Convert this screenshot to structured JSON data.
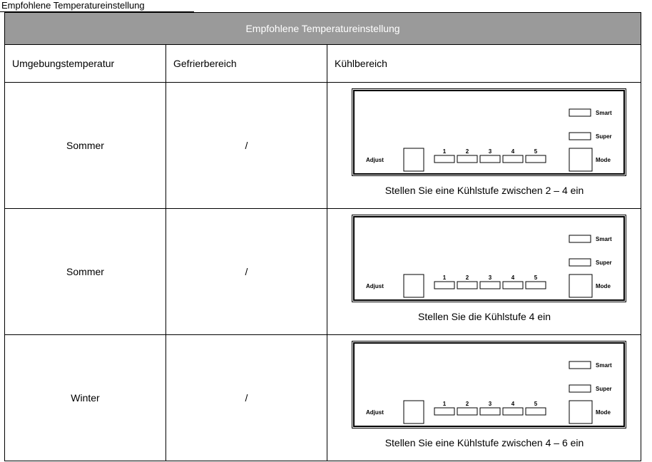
{
  "caption": "Empfohlene Temperatureinstellung",
  "table": {
    "title": "Empfohlene Temperatureinstellung",
    "headers": [
      "Umgebungstemperatur",
      "Gefrierbereich",
      "Kühlbereich"
    ],
    "rows": [
      [
        "Sommer",
        "/",
        "Stellen Sie eine Kühlstufe zwischen 2 – 4 ein"
      ],
      [
        "Sommer",
        "/",
        "Stellen Sie die Kühlstufe 4 ein"
      ],
      [
        "Winter",
        "/",
        "Stellen Sie eine Kühlstufe zwischen 4 – 6 ein"
      ]
    ]
  },
  "panel": {
    "smart": "Smart",
    "super": "Super",
    "adjust": "Adjust",
    "mode": "Mode",
    "levels": [
      "1",
      "2",
      "3",
      "4",
      "5"
    ]
  }
}
